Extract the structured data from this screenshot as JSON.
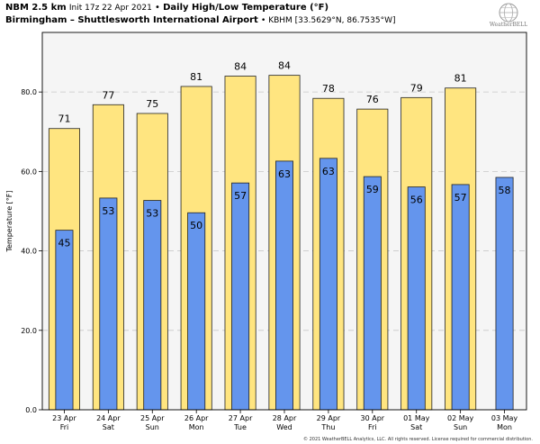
{
  "header": {
    "model": "NBM 2.5 km",
    "init": "Init 17z 22 Apr 2021",
    "bullet": "•",
    "product": "Daily High/Low Temperature (°F)",
    "station_name": "Birmingham – Shuttlesworth International Airport",
    "station_id": "• KBHM [33.5629°N, 86.7535°W]"
  },
  "logo": {
    "text": "WeatherBELL",
    "icon": "globe-icon"
  },
  "copyright": "© 2021 WeatherBELL Analytics, LLC. All rights reserved. License required for commercial distribution.",
  "colors": {
    "high": "#ffe580",
    "low": "#6495ed",
    "plot_bg": "#f5f5f5",
    "grid": "#c8c8c8"
  },
  "chart_data": {
    "type": "bar",
    "title": "Daily High/Low Temperature (°F)",
    "ylabel": "Temperature [°F]",
    "ylim": [
      0,
      95
    ],
    "yticks": [
      0.0,
      20.0,
      40.0,
      60.0,
      80.0
    ],
    "ytick_labels": [
      "0.0",
      "20.0",
      "40.0",
      "60.0",
      "80.0"
    ],
    "grid": true,
    "categories": [
      {
        "date": "23 Apr",
        "day": "Fri"
      },
      {
        "date": "24 Apr",
        "day": "Sat"
      },
      {
        "date": "25 Apr",
        "day": "Sun"
      },
      {
        "date": "26 Apr",
        "day": "Mon"
      },
      {
        "date": "27 Apr",
        "day": "Tue"
      },
      {
        "date": "28 Apr",
        "day": "Wed"
      },
      {
        "date": "29 Apr",
        "day": "Thu"
      },
      {
        "date": "30 Apr",
        "day": "Fri"
      },
      {
        "date": "01 May",
        "day": "Sat"
      },
      {
        "date": "02 May",
        "day": "Sun"
      },
      {
        "date": "03 May",
        "day": "Mon"
      }
    ],
    "series": [
      {
        "key": "high",
        "values": [
          70.8,
          76.8,
          74.6,
          81.4,
          84.0,
          84.2,
          78.4,
          75.7,
          78.6,
          81.0,
          null
        ],
        "labels": [
          "71",
          "77",
          "75",
          "81",
          "84",
          "84",
          "78",
          "76",
          "79",
          "81",
          ""
        ]
      },
      {
        "key": "low",
        "values": [
          45.2,
          53.3,
          52.7,
          49.6,
          57.1,
          62.6,
          63.3,
          58.7,
          56.1,
          56.7,
          58.5
        ],
        "labels": [
          "45",
          "53",
          "53",
          "50",
          "57",
          "63",
          "63",
          "59",
          "56",
          "57",
          "58"
        ]
      }
    ]
  }
}
